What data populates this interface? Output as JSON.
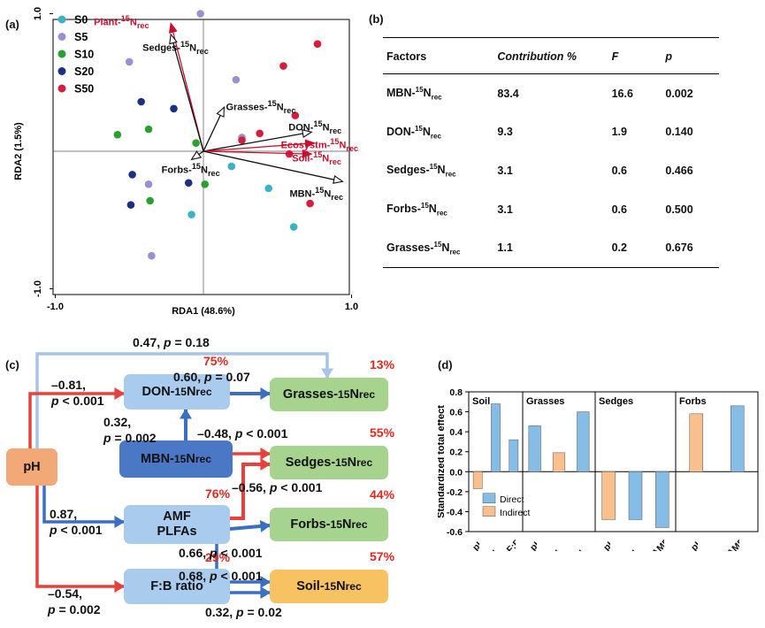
{
  "panel_labels": {
    "a": "(a)",
    "b": "(b)",
    "c": "(c)",
    "d": "(d)"
  },
  "chart_data": [
    {
      "type": "scatter",
      "panel": "(a)",
      "xlabel": "RDA1 (48.6%)",
      "ylabel": "RDA2 (1.5%)",
      "xlim": [
        -1.0,
        1.0
      ],
      "ylim": [
        -1.0,
        1.0
      ],
      "xticks": [
        "-1.0",
        "1.0"
      ],
      "yticks": [
        "-1.0",
        "1.0"
      ],
      "legend_position": "top-left",
      "series": [
        {
          "name": "S0",
          "color": "#3bb3c3",
          "points": [
            [
              0.19,
              -0.11
            ],
            [
              0.44,
              -0.27
            ],
            [
              0.61,
              -0.55
            ],
            [
              -0.08,
              -0.46
            ]
          ]
        },
        {
          "name": "S5",
          "color": "#9b8fd0",
          "points": [
            [
              -0.5,
              0.65
            ],
            [
              -0.02,
              1.0
            ],
            [
              0.22,
              0.52
            ],
            [
              0.26,
              0.1
            ],
            [
              -0.37,
              -0.24
            ],
            [
              -0.35,
              -0.76
            ]
          ]
        },
        {
          "name": "S10",
          "color": "#2aa12e",
          "points": [
            [
              -0.58,
              0.12
            ],
            [
              -0.37,
              0.16
            ],
            [
              -0.05,
              0.06
            ],
            [
              0.01,
              -0.24
            ],
            [
              -0.36,
              -0.36
            ]
          ]
        },
        {
          "name": "S20",
          "color": "#1f2f80",
          "points": [
            [
              -0.42,
              0.36
            ],
            [
              -0.2,
              0.31
            ],
            [
              -0.48,
              -0.17
            ],
            [
              -0.49,
              -0.39
            ],
            [
              -0.1,
              -0.23
            ]
          ]
        },
        {
          "name": "S50",
          "color": "#d21f3c",
          "points": [
            [
              0.77,
              0.78
            ],
            [
              0.54,
              0.62
            ],
            [
              0.26,
              0.08
            ],
            [
              0.38,
              0.13
            ],
            [
              0.62,
              0.26
            ],
            [
              0.58,
              -0.02
            ],
            [
              0.72,
              -0.38
            ]
          ]
        }
      ],
      "vectors": [
        {
          "label_html": "Plant-<sup>15</sup>N<sub>rec</sub>",
          "x": -0.22,
          "y": 0.93,
          "color": "#c8102e",
          "filled": true
        },
        {
          "label_html": "Sedges-<sup>15</sup>N<sub>rec</sub>",
          "x": -0.22,
          "y": 0.85,
          "color": "#111111",
          "filled": false
        },
        {
          "label_html": "Grasses-<sup>15</sup>N<sub>rec</sub>",
          "x": 0.14,
          "y": 0.32,
          "color": "#111111",
          "filled": false
        },
        {
          "label_html": "DON-<sup>15</sup>N<sub>rec</sub>",
          "x": 0.73,
          "y": 0.14,
          "color": "#111111",
          "filled": false
        },
        {
          "label_html": "Ecosystm-<sup>15</sup>N<sub>rec</sub>",
          "x": 0.75,
          "y": 0.06,
          "color": "#c8102e",
          "filled": true
        },
        {
          "label_html": "Soil-<sup>15</sup>N<sub>rec</sub>",
          "x": 0.73,
          "y": -0.02,
          "color": "#c8102e",
          "filled": true
        },
        {
          "label_html": "MBN-<sup>15</sup>N<sub>rec</sub>",
          "x": 0.94,
          "y": -0.22,
          "color": "#111111",
          "filled": false
        },
        {
          "label_html": "Forbs-<sup>15</sup>N<sub>rec</sub>",
          "x": -0.08,
          "y": -0.06,
          "color": "#111111",
          "filled": false
        }
      ]
    },
    {
      "type": "table",
      "panel": "(b)",
      "columns": [
        "Factors",
        "Contribution %",
        "F",
        "p"
      ],
      "rows": [
        {
          "factor_html": "MBN-<sup>15</sup>N<sub>rec</sub>",
          "contribution": "83.4",
          "F": "16.6",
          "p": "0.002"
        },
        {
          "factor_html": "DON-<sup>15</sup>N<sub>rec</sub>",
          "contribution": "9.3",
          "F": "1.9",
          "p": "0.140"
        },
        {
          "factor_html": "Sedges-<sup>15</sup>N<sub>rec</sub>",
          "contribution": "3.1",
          "F": "0.6",
          "p": "0.466"
        },
        {
          "factor_html": "Forbs-<sup>15</sup>N<sub>rec</sub>",
          "contribution": "3.1",
          "F": "0.6",
          "p": "0.500"
        },
        {
          "factor_html": "Grasses-<sup>15</sup>N<sub>rec</sub>",
          "contribution": "1.1",
          "F": "0.2",
          "p": "0.676"
        }
      ]
    },
    {
      "type": "bar",
      "panel": "(d)",
      "ylabel": "Standardized total effect",
      "ylim": [
        -0.6,
        0.8
      ],
      "yticks": [
        "0.8",
        "0.6",
        "0.4",
        "0.2",
        "0.0",
        "-0.2",
        "-0.4",
        "-0.6"
      ],
      "legend_position": "bottom-left",
      "legend": [
        {
          "name": "Direct",
          "color": "#86bde6"
        },
        {
          "name": "Indirect",
          "color": "#f9bf8d"
        }
      ],
      "groups": [
        {
          "title": "Soil",
          "bars": [
            {
              "label_html": "pH",
              "value": -0.17,
              "type": "Indirect"
            },
            {
              "label_html": "MBN-<sup>15</sup>N<sub>rec</sub>",
              "value": 0.68,
              "type": "Direct"
            },
            {
              "label_html": "F:B",
              "value": 0.32,
              "type": "Direct"
            }
          ]
        },
        {
          "title": "Grasses",
          "bars": [
            {
              "label_html": "pH",
              "value": 0.46,
              "type": "Direct"
            },
            {
              "label_html": "MBN-<sup>15</sup>N<sub>rec</sub>",
              "value": 0.19,
              "type": "Indirect"
            },
            {
              "label_html": "DON-<sup>15</sup>N<sub>rec</sub>",
              "value": 0.6,
              "type": "Direct"
            }
          ]
        },
        {
          "title": "Sedges",
          "bars": [
            {
              "label_html": "pH",
              "value": -0.48,
              "type": "Indirect"
            },
            {
              "label_html": "MBN-<sup>15</sup>N<sub>rec</sub>",
              "value": -0.48,
              "type": "Direct"
            },
            {
              "label_html": "AMF",
              "value": -0.56,
              "type": "Direct"
            }
          ]
        },
        {
          "title": "Forbs",
          "bars": [
            {
              "label_html": "pH",
              "value": 0.58,
              "type": "Indirect"
            },
            {
              "label_html": "AMF",
              "value": 0.66,
              "type": "Direct"
            }
          ]
        }
      ]
    }
  ],
  "path_diagram": {
    "panel": "(c)",
    "nodes": [
      {
        "id": "ph",
        "label_html": "pH",
        "color": "#f2a877"
      },
      {
        "id": "don",
        "label_html": "DON-<sup>15</sup>N<sub>rec</sub>",
        "color": "#a9cbed",
        "r2": "75%"
      },
      {
        "id": "mbn",
        "label_html": "MBN-<sup>15</sup>N<sub>rec</sub>",
        "color": "#4a78c6"
      },
      {
        "id": "amf",
        "label_html": "AMF<br>PLFAs",
        "color": "#a9cbed",
        "r2": "76%"
      },
      {
        "id": "fb",
        "label_html": "F:B ratio",
        "color": "#a9cbed",
        "r2": "29%"
      },
      {
        "id": "grasses",
        "label_html": "Grasses-<sup>15</sup>N<sub>rec</sub>",
        "color": "#a6d38e",
        "r2": "13%"
      },
      {
        "id": "sedges",
        "label_html": "Sedges-<sup>15</sup>N<sub>rec</sub>",
        "color": "#a6d38e",
        "r2": "55%"
      },
      {
        "id": "forbs",
        "label_html": "Forbs-<sup>15</sup>N<sub>rec</sub>",
        "color": "#a6d38e",
        "r2": "44%"
      },
      {
        "id": "soil",
        "label_html": "Soil-<sup>15</sup>N<sub>rec</sub>",
        "color": "#f8c162",
        "r2": "57%"
      }
    ],
    "path_labels": [
      {
        "id": "ph_grasses",
        "html": "0.47, <i>p</i> = 0.18"
      },
      {
        "id": "ph_don",
        "html": "&ndash;0.81,<br><i>p</i> &lt; 0.001"
      },
      {
        "id": "don_grasses",
        "html": "0.60, <i>p</i> = 0.07"
      },
      {
        "id": "mbn_don",
        "html": "0.32,<br><i>p</i> = 0.002"
      },
      {
        "id": "mbn_sedges",
        "html": "&ndash;0.48, <i>p</i> &lt; 0.001"
      },
      {
        "id": "amf_sedges",
        "html": "&ndash;0.56, <i>p</i> &lt; 0.001"
      },
      {
        "id": "ph_amf",
        "html": "0.87,<br><i>p</i> &lt; 0.001"
      },
      {
        "id": "amf_forbs",
        "html": "0.66, <i>p</i> &lt; 0.001"
      },
      {
        "id": "amf_soil",
        "html": "0.68, <i>p</i> &lt; 0.001"
      },
      {
        "id": "ph_fb",
        "html": "&ndash;0.54,<br><i>p</i> = 0.002"
      },
      {
        "id": "fb_soil",
        "html": "0.32, <i>p</i> = 0.02"
      }
    ],
    "colors": {
      "positive": "#3a6fc4",
      "negative": "#e8403a",
      "nonsignificant": "#a9c4e8"
    }
  }
}
